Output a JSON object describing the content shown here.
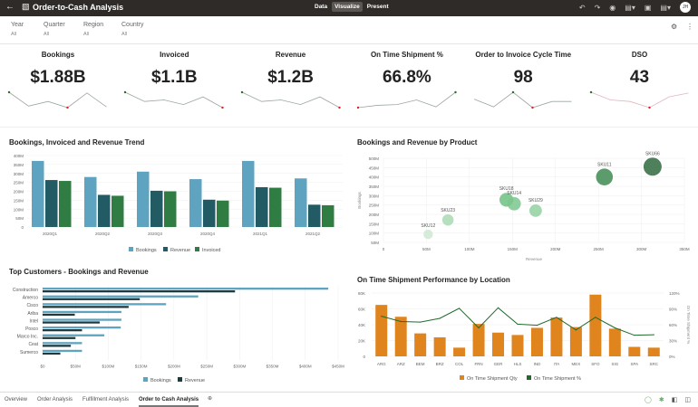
{
  "app": {
    "title": "Order-to-Cash Analysis",
    "modes": [
      "Data",
      "Visualize",
      "Present"
    ],
    "active_mode": "Visualize",
    "user_initials": "JH"
  },
  "filters": [
    {
      "label": "Year",
      "value": "All"
    },
    {
      "label": "Quarter",
      "value": "All"
    },
    {
      "label": "Region",
      "value": "All"
    },
    {
      "label": "Country",
      "value": "All"
    }
  ],
  "kpis": [
    {
      "label": "Bookings",
      "value": "$1.88B",
      "trend": [
        1,
        0.1,
        0.4,
        0,
        0.95,
        0.05
      ],
      "line_color": "#9aa7a0",
      "max_idx": 0,
      "min_idx": 3
    },
    {
      "label": "Invoiced",
      "value": "$1.1B",
      "trend": [
        1,
        0.4,
        0.5,
        0.2,
        0.7,
        0
      ],
      "line_color": "#9aa7a0",
      "max_idx": 0,
      "min_idx": 5
    },
    {
      "label": "Revenue",
      "value": "$1.2B",
      "trend": [
        1,
        0.4,
        0.5,
        0.2,
        0.7,
        0
      ],
      "line_color": "#9aa7a0",
      "max_idx": 0,
      "min_idx": 5
    },
    {
      "label": "On Time Shipment %",
      "value": "66.8%",
      "trend": [
        0,
        0.15,
        0.2,
        0.5,
        0.05,
        1
      ],
      "line_color": "#9aa7a0",
      "max_idx": 5,
      "min_idx": 0
    },
    {
      "label": "Order to Invoice Cycle Time",
      "value": "98",
      "trend": [
        0.55,
        0.05,
        1,
        0,
        0.4,
        0.4
      ],
      "line_color": "#9aa7a0",
      "max_idx": 2,
      "min_idx": 3
    },
    {
      "label": "DSO",
      "value": "43",
      "trend": [
        1,
        0.5,
        0.4,
        0,
        0.7,
        0.95
      ],
      "line_color": "#e0b5bd",
      "max_idx": 0,
      "min_idx": 3
    }
  ],
  "chart_data": [
    {
      "type": "bar",
      "title": "Bookings, Invoiced and Revenue Trend",
      "categories": [
        "2020Q1",
        "2020Q2",
        "2020Q3",
        "2020Q4",
        "2021Q1",
        "2021Q2"
      ],
      "series": [
        {
          "name": "Bookings",
          "color": "#5ea3bf",
          "values": [
            370,
            280,
            310,
            268,
            370,
            272
          ]
        },
        {
          "name": "Revenue",
          "color": "#225b63",
          "values": [
            263,
            180,
            203,
            153,
            223,
            125
          ]
        },
        {
          "name": "Invoiced",
          "color": "#2f7d43",
          "values": [
            258,
            175,
            200,
            148,
            220,
            122
          ]
        }
      ],
      "ylim": [
        0,
        400
      ],
      "yticks": [
        "0",
        "50M",
        "100M",
        "150M",
        "200M",
        "250M",
        "300M",
        "350M",
        "400M"
      ],
      "legend": "bottom",
      "grid": true
    },
    {
      "type": "scatter",
      "title": "Bookings and Revenue by Product",
      "xlabel": "Revenue",
      "ylabel": "Bookings",
      "points": [
        {
          "label": "SKU12",
          "x": 52,
          "y": 93
        },
        {
          "label": "SKU23",
          "x": 75,
          "y": 170
        },
        {
          "label": "SKU18",
          "x": 143,
          "y": 278
        },
        {
          "label": "SKU14",
          "x": 152,
          "y": 257
        },
        {
          "label": "SKU29",
          "x": 177,
          "y": 220
        },
        {
          "label": "SKU11",
          "x": 257,
          "y": 400
        },
        {
          "label": "SKU66",
          "x": 313,
          "y": 455
        }
      ],
      "xlim": [
        0,
        350
      ],
      "ylim": [
        50,
        500
      ],
      "xticks": [
        "0",
        "50M",
        "100M",
        "150M",
        "200M",
        "250M",
        "300M",
        "350M"
      ],
      "yticks": [
        "50M",
        "100M",
        "150M",
        "200M",
        "250M",
        "300M",
        "350M",
        "400M",
        "450M",
        "500M"
      ],
      "grid": true
    },
    {
      "type": "bar",
      "orientation": "horizontal",
      "title": "Top Customers - Bookings and Revenue",
      "categories": [
        "Construction",
        "Amerco",
        "Cisco",
        "Ariba",
        "Intel",
        "Posco",
        "Marco Inc.",
        "Ceat",
        "Sumerco"
      ],
      "series": [
        {
          "name": "Bookings",
          "color": "#5ea3bf",
          "values": [
            435,
            237,
            188,
            120,
            120,
            119,
            94,
            60,
            60
          ]
        },
        {
          "name": "Revenue",
          "color": "#1e3a40",
          "values": [
            293,
            148,
            131,
            49,
            87,
            60,
            50,
            43,
            27
          ]
        }
      ],
      "xlim": [
        0,
        450
      ],
      "xticks": [
        "$0",
        "$50M",
        "$100M",
        "$150M",
        "$200M",
        "$250M",
        "$300M",
        "$350M",
        "$400M",
        "$450M"
      ],
      "legend": "bottom",
      "grid": true
    },
    {
      "type": "bar",
      "title": "On Time Shipment Performance by Location",
      "categories": [
        "ARG",
        "ARZ",
        "BEM",
        "BRZ",
        "COL",
        "FRN",
        "GER",
        "HLS",
        "IND",
        "ITA",
        "MEX",
        "SFO",
        "SIG",
        "SPA",
        "SRC"
      ],
      "series": [
        {
          "name": "On Time Shipment Qty",
          "type": "bar",
          "color": "#e0841e",
          "values": [
            65,
            50,
            29,
            24,
            11,
            41,
            30,
            27,
            36,
            49,
            37,
            78,
            35,
            12,
            11
          ]
        },
        {
          "name": "On Time Shipment %",
          "type": "line",
          "color": "#1f6b2a",
          "values": [
            76,
            66,
            65,
            72,
            91,
            54,
            92,
            61,
            59,
            74,
            50,
            74,
            54,
            40,
            41
          ]
        }
      ],
      "ylim": [
        0,
        80
      ],
      "yticks": [
        "0",
        "20K",
        "40K",
        "60K",
        "80K"
      ],
      "y2lim": [
        0,
        120
      ],
      "y2ticks": [
        "0%",
        "30%",
        "60%",
        "90%",
        "120%"
      ],
      "y2label": "On Time Shipment %",
      "legend": "bottom",
      "grid": true
    }
  ],
  "tabs": {
    "items": [
      "Overview",
      "Order Analysis",
      "Fulfillment Analysis",
      "Order to Cash Analysis"
    ],
    "active": 3
  }
}
